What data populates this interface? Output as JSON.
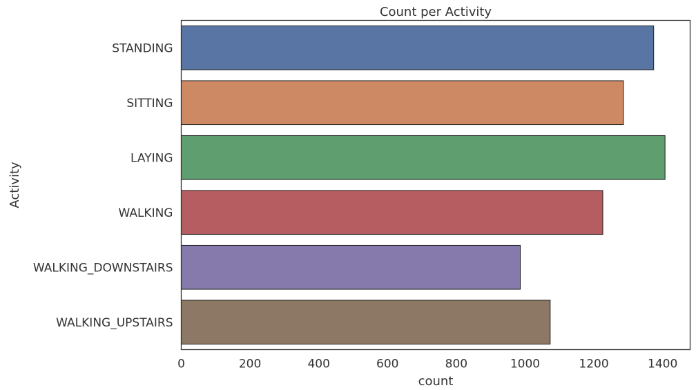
{
  "chart_data": {
    "type": "bar",
    "orientation": "horizontal",
    "title": "Count per Activity",
    "xlabel": "count",
    "ylabel": "Activity",
    "categories": [
      "STANDING",
      "SITTING",
      "LAYING",
      "WALKING",
      "WALKING_DOWNSTAIRS",
      "WALKING_UPSTAIRS"
    ],
    "values": [
      1374,
      1286,
      1407,
      1226,
      986,
      1073
    ],
    "colors": [
      "#5875a4",
      "#cc8963",
      "#5f9e6e",
      "#b55d60",
      "#857aab",
      "#8d7866"
    ],
    "xlim": [
      0,
      1480
    ],
    "xticks": [
      0,
      200,
      400,
      600,
      800,
      1000,
      1200,
      1400
    ],
    "grid": false,
    "legend": "none"
  }
}
